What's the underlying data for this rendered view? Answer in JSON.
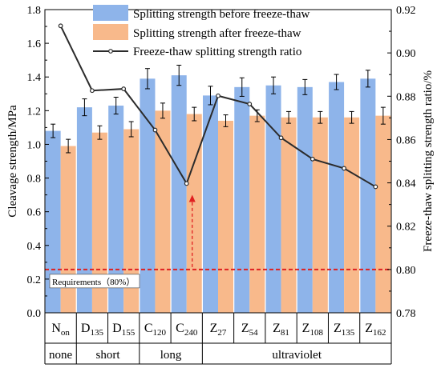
{
  "chart_data": {
    "type": "bar",
    "categories": [
      {
        "base": "N",
        "sub": "on"
      },
      {
        "base": "D",
        "sub": "135"
      },
      {
        "base": "D",
        "sub": "155"
      },
      {
        "base": "C",
        "sub": "120"
      },
      {
        "base": "C",
        "sub": "240"
      },
      {
        "base": "Z",
        "sub": "27"
      },
      {
        "base": "Z",
        "sub": "54"
      },
      {
        "base": "Z",
        "sub": "81"
      },
      {
        "base": "Z",
        "sub": "108"
      },
      {
        "base": "Z",
        "sub": "135"
      },
      {
        "base": "Z",
        "sub": "162"
      }
    ],
    "groups": [
      {
        "label": "none",
        "from": 0,
        "to": 0
      },
      {
        "label": "short",
        "from": 1,
        "to": 2
      },
      {
        "label": "long",
        "from": 3,
        "to": 4
      },
      {
        "label": "ultraviolet",
        "from": 5,
        "to": 10
      }
    ],
    "series": [
      {
        "name": "Splitting strength before freeze-thaw",
        "type": "bar",
        "axis": "left",
        "color": "#8eb4ea",
        "values": [
          1.08,
          1.22,
          1.23,
          1.39,
          1.41,
          1.29,
          1.34,
          1.35,
          1.34,
          1.37,
          1.39
        ],
        "errors": [
          0.04,
          0.05,
          0.05,
          0.06,
          0.06,
          0.055,
          0.055,
          0.05,
          0.045,
          0.045,
          0.05
        ]
      },
      {
        "name": "Splitting strength after freeze-thaw",
        "type": "bar",
        "axis": "left",
        "color": "#f8b98b",
        "values": [
          0.99,
          1.07,
          1.09,
          1.2,
          1.18,
          1.14,
          1.17,
          1.16,
          1.16,
          1.16,
          1.17
        ],
        "errors": [
          0.04,
          0.04,
          0.045,
          0.045,
          0.04,
          0.035,
          0.035,
          0.035,
          0.035,
          0.035,
          0.05
        ]
      },
      {
        "name": "Freeze-thaw splitting strength ratio",
        "type": "line",
        "axis": "right",
        "color": "#2b2b2b",
        "values": [
          0.9125,
          0.8826,
          0.8834,
          0.8644,
          0.8397,
          0.8802,
          0.8764,
          0.8608,
          0.851,
          0.8467,
          0.8382
        ]
      }
    ],
    "ylabel": "Cleavage strength/MPa",
    "ylim": [
      0.0,
      1.8
    ],
    "yticks": [
      0.0,
      0.2,
      0.4,
      0.6,
      0.8,
      1.0,
      1.2,
      1.4,
      1.6,
      1.8
    ],
    "ylabel_right": "Freeze-thaw splitting strength ratio/%",
    "ylim_right": [
      0.78,
      0.92
    ],
    "yticks_right": [
      0.78,
      0.8,
      0.82,
      0.84,
      0.86,
      0.88,
      0.9,
      0.92
    ],
    "threshold": {
      "value": 0.8,
      "axis": "right",
      "label": "Requirements（80%）",
      "color": "#e02020"
    },
    "arrow": {
      "category_index": 4,
      "from_right": 0.8,
      "to_right": 0.8345,
      "color": "#e02020"
    },
    "legend_position": "top-center",
    "grid": false
  }
}
